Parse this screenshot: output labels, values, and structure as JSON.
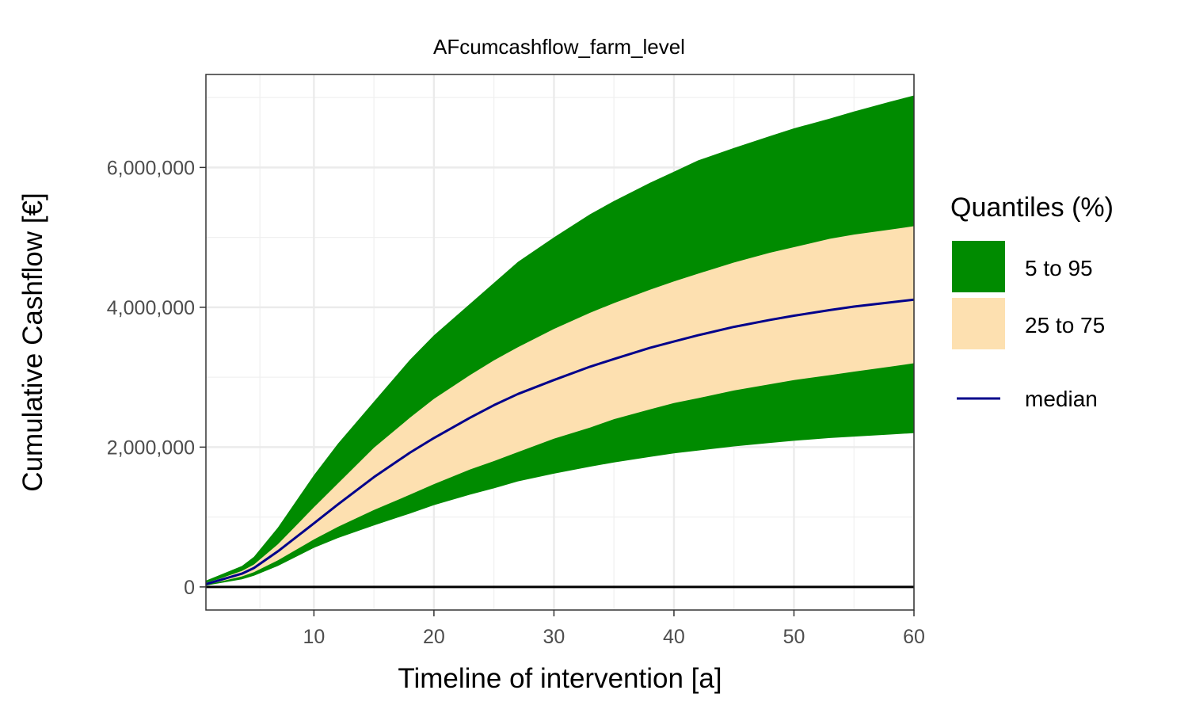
{
  "chart_data": {
    "type": "area",
    "title": "AFcumcashflow_farm_level",
    "xlabel": "Timeline of intervention [a]",
    "ylabel": "Cumulative  Cashflow [€]",
    "xlim": [
      1,
      60
    ],
    "ylim": [
      -330000,
      7330000
    ],
    "x_ticks": [
      10,
      20,
      30,
      40,
      50,
      60
    ],
    "x_tick_labels": [
      "10",
      "20",
      "30",
      "40",
      "50",
      "60"
    ],
    "y_ticks": [
      0,
      2000000,
      4000000,
      6000000
    ],
    "y_tick_labels": [
      "0",
      "2,000,000",
      "4,000,000",
      "6,000,000"
    ],
    "grid": true,
    "reference_line_y": 0,
    "legend": {
      "title": "Quantiles (%)",
      "placement": "right",
      "entries": [
        {
          "label": "5 to 95",
          "kind": "band",
          "color": "#008b00"
        },
        {
          "label": "25 to 75",
          "kind": "band",
          "color": "#fde0b0"
        },
        {
          "label": "median",
          "kind": "line",
          "color": "#00008b"
        }
      ]
    },
    "x": [
      1,
      2,
      4,
      5,
      7,
      10,
      12,
      15,
      18,
      20,
      23,
      25,
      27,
      30,
      33,
      35,
      38,
      40,
      42,
      45,
      48,
      50,
      53,
      55,
      58,
      60
    ],
    "series": [
      {
        "name": "5 to 95",
        "type": "band",
        "color": "#008b00",
        "lower": [
          20000,
          50000,
          110000,
          160000,
          300000,
          560000,
          700000,
          880000,
          1050000,
          1170000,
          1320000,
          1410000,
          1510000,
          1620000,
          1720000,
          1780000,
          1860000,
          1910000,
          1950000,
          2010000,
          2060000,
          2090000,
          2130000,
          2150000,
          2180000,
          2200000
        ],
        "upper": [
          90000,
          160000,
          300000,
          430000,
          850000,
          1600000,
          2050000,
          2650000,
          3250000,
          3600000,
          4050000,
          4350000,
          4650000,
          5000000,
          5330000,
          5520000,
          5780000,
          5940000,
          6100000,
          6280000,
          6450000,
          6560000,
          6700000,
          6800000,
          6940000,
          7030000
        ]
      },
      {
        "name": "25 to 75",
        "type": "band",
        "color": "#fde0b0",
        "lower": [
          30000,
          70000,
          150000,
          210000,
          380000,
          680000,
          860000,
          1100000,
          1320000,
          1470000,
          1680000,
          1800000,
          1930000,
          2120000,
          2280000,
          2400000,
          2540000,
          2630000,
          2700000,
          2810000,
          2900000,
          2960000,
          3030000,
          3080000,
          3150000,
          3200000
        ],
        "upper": [
          60000,
          110000,
          230000,
          320000,
          610000,
          1140000,
          1480000,
          1990000,
          2420000,
          2690000,
          3030000,
          3240000,
          3430000,
          3690000,
          3920000,
          4060000,
          4250000,
          4370000,
          4480000,
          4640000,
          4780000,
          4860000,
          4980000,
          5040000,
          5110000,
          5160000
        ]
      },
      {
        "name": "median",
        "type": "line",
        "color": "#00008b",
        "values": [
          40000,
          90000,
          190000,
          270000,
          510000,
          910000,
          1180000,
          1570000,
          1920000,
          2130000,
          2420000,
          2600000,
          2760000,
          2960000,
          3150000,
          3260000,
          3420000,
          3510000,
          3600000,
          3720000,
          3820000,
          3880000,
          3960000,
          4010000,
          4070000,
          4110000
        ]
      }
    ]
  }
}
